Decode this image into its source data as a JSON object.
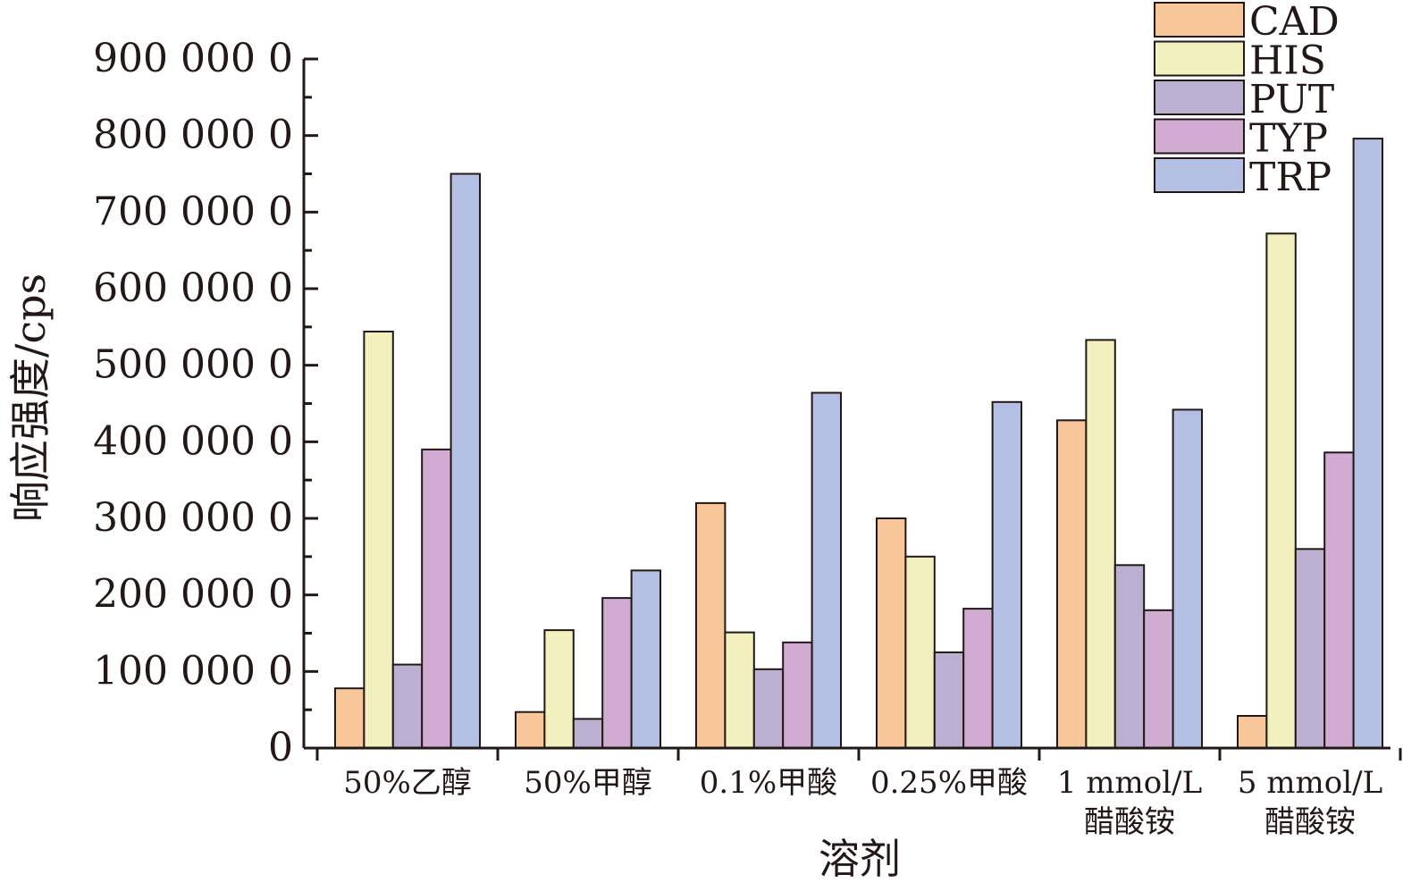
{
  "chart_data": {
    "type": "bar",
    "xlabel": "溶剂",
    "ylabel": "响应强度/cps",
    "ylim": [
      0,
      9000000
    ],
    "y_tick_values": [
      0,
      1000000,
      2000000,
      3000000,
      4000000,
      5000000,
      6000000,
      7000000,
      8000000,
      9000000
    ],
    "y_tick_labels": [
      "0",
      "100 000 0",
      "200 000 0",
      "300 000 0",
      "400 000 0",
      "500 000 0",
      "600 000 0",
      "700 000 0",
      "800 000 0",
      "900 000 0"
    ],
    "categories": [
      [
        "50%乙醇"
      ],
      [
        "50%甲醇"
      ],
      [
        "0.1%甲酸"
      ],
      [
        "0.25%甲酸"
      ],
      [
        "1 mmol/L",
        "醋酸铵"
      ],
      [
        "5 mmol/L",
        "醋酸铵"
      ]
    ],
    "legend_position": "top-right",
    "grid": false,
    "series": [
      {
        "name": "CAD",
        "color": "#f7c79a",
        "values": [
          780000,
          470000,
          3200000,
          3000000,
          4280000,
          420000
        ]
      },
      {
        "name": "HIS",
        "color": "#f2f0bf",
        "values": [
          5440000,
          1540000,
          1510000,
          2500000,
          5330000,
          6720000
        ]
      },
      {
        "name": "PUT",
        "color": "#bbafd2",
        "values": [
          1090000,
          380000,
          1030000,
          1250000,
          2390000,
          2600000
        ]
      },
      {
        "name": "TYP",
        "color": "#d2abd3",
        "values": [
          3900000,
          1960000,
          1380000,
          1820000,
          1800000,
          3860000
        ]
      },
      {
        "name": "TRP",
        "color": "#b3bfe3",
        "values": [
          7500000,
          2320000,
          4640000,
          4520000,
          4420000,
          7960000
        ]
      }
    ]
  }
}
